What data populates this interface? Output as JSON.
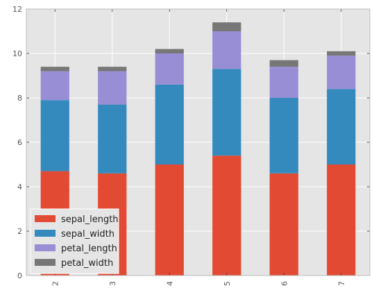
{
  "chart_data": {
    "type": "bar",
    "stacked": true,
    "categories": [
      "2",
      "3",
      "4",
      "5",
      "6",
      "7"
    ],
    "series": [
      {
        "name": "sepal_length",
        "values": [
          4.7,
          4.6,
          5.0,
          5.4,
          4.6,
          5.0
        ],
        "color": "#e24a33"
      },
      {
        "name": "sepal_width",
        "values": [
          3.2,
          3.1,
          3.6,
          3.9,
          3.4,
          3.4
        ],
        "color": "#348abd"
      },
      {
        "name": "petal_length",
        "values": [
          1.3,
          1.5,
          1.4,
          1.7,
          1.4,
          1.5
        ],
        "color": "#988ed5"
      },
      {
        "name": "petal_width",
        "values": [
          0.2,
          0.2,
          0.2,
          0.4,
          0.3,
          0.2
        ],
        "color": "#777777"
      }
    ],
    "ylim": [
      0,
      12
    ],
    "yticks": [
      0,
      2,
      4,
      6,
      8,
      10,
      12
    ],
    "xtick_rotation": 90,
    "grid": true,
    "legend": "lower-left",
    "title": "",
    "xlabel": "",
    "ylabel": ""
  },
  "style": {
    "background": "#e5e5e5",
    "grid_color": "#ffffff",
    "text_color": "#555555"
  }
}
